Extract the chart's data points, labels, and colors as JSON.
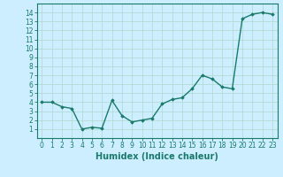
{
  "x": [
    0,
    1,
    2,
    3,
    4,
    5,
    6,
    7,
    8,
    9,
    10,
    11,
    12,
    13,
    14,
    15,
    16,
    17,
    18,
    19,
    20,
    21,
    22,
    23
  ],
  "y": [
    4.0,
    4.0,
    3.5,
    3.3,
    1.0,
    1.2,
    1.1,
    4.2,
    2.5,
    1.8,
    2.0,
    2.2,
    3.8,
    4.3,
    4.5,
    5.5,
    7.0,
    6.6,
    5.7,
    5.5,
    13.3,
    13.8,
    14.0,
    13.8
  ],
  "xlim": [
    -0.5,
    23.5
  ],
  "ylim": [
    0,
    15
  ],
  "yticks": [
    1,
    2,
    3,
    4,
    5,
    6,
    7,
    8,
    9,
    10,
    11,
    12,
    13,
    14
  ],
  "xticks": [
    0,
    1,
    2,
    3,
    4,
    5,
    6,
    7,
    8,
    9,
    10,
    11,
    12,
    13,
    14,
    15,
    16,
    17,
    18,
    19,
    20,
    21,
    22,
    23
  ],
  "xlabel": "Humidex (Indice chaleur)",
  "line_color": "#1a7a6a",
  "marker": "D",
  "marker_size": 1.8,
  "bg_color": "#cceeff",
  "grid_color": "#b0d8cc",
  "title_color": "#1a7a6a",
  "xlabel_fontsize": 7,
  "tick_fontsize": 5.5,
  "line_width": 1.0
}
